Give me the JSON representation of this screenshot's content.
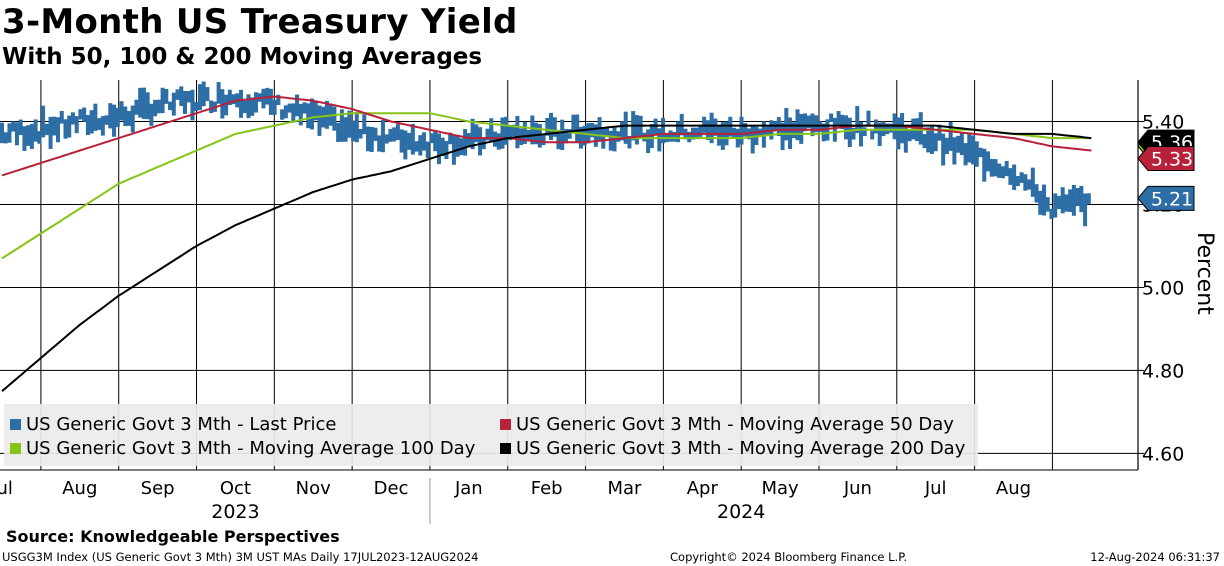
{
  "title": "3-Month US Treasury Yield",
  "subtitle": "With 50, 100 & 200 Moving Averages",
  "source": "Source: Knowledgeable Perspectives",
  "footer": {
    "left": "USGG3M Index (US Generic Govt 3 Mth) 3M UST MAs  Daily 17JUL2023-12AUG2024",
    "mid": "Copyright© 2024 Bloomberg Finance L.P.",
    "right": "12-Aug-2024 06:31:37"
  },
  "colors": {
    "last": "#2e6ea6",
    "ma50": "#b8213a",
    "ma100": "#86c517",
    "ma200": "#000000"
  },
  "chart_data": {
    "type": "line",
    "title": "3-Month US Treasury Yield",
    "subtitle": "With 50, 100 & 200 Moving Averages",
    "ylabel": "Percent",
    "xlabel": "",
    "ylim": [
      4.56,
      5.5
    ],
    "yticks": [
      "4.60",
      "4.80",
      "5.00",
      "5.20",
      "5.40"
    ],
    "month_labels": [
      "Jul",
      "Aug",
      "Sep",
      "Oct",
      "Nov",
      "Dec",
      "Jan",
      "Feb",
      "Mar",
      "Apr",
      "May",
      "Jun",
      "Jul",
      "Aug"
    ],
    "year_labels": [
      "2023",
      "2024"
    ],
    "last_price_badge": "5.21",
    "ma50_badge": "5.33",
    "ma100_badge": "5.36",
    "ma200_badge": "5.36",
    "series": [
      {
        "name": "US Generic Govt 3 Mth - Last Price",
        "style": "bars",
        "x": [
          0,
          0.5,
          1,
          1.5,
          2,
          2.5,
          3,
          3.5,
          4,
          4.5,
          5,
          5.5,
          6,
          6.5,
          7,
          7.5,
          8,
          8.5,
          9,
          9.5,
          10,
          10.5,
          11,
          11.5,
          12,
          12.5,
          13,
          13.5,
          14
        ],
        "values": [
          5.37,
          5.38,
          5.4,
          5.41,
          5.44,
          5.45,
          5.46,
          5.44,
          5.41,
          5.38,
          5.36,
          5.35,
          5.35,
          5.37,
          5.37,
          5.38,
          5.37,
          5.37,
          5.38,
          5.37,
          5.38,
          5.39,
          5.39,
          5.38,
          5.36,
          5.32,
          5.28,
          5.19,
          5.21
        ]
      },
      {
        "name": "US Generic Govt 3 Mth - Moving Average 50 Day",
        "style": "line",
        "x": [
          0,
          0.5,
          1,
          1.5,
          2,
          2.5,
          3,
          3.5,
          4,
          4.5,
          5,
          5.5,
          6,
          6.5,
          7,
          7.5,
          8,
          8.5,
          9,
          9.5,
          10,
          10.5,
          11,
          11.5,
          12,
          12.5,
          13,
          13.5,
          14
        ],
        "values": [
          5.27,
          5.3,
          5.33,
          5.36,
          5.39,
          5.42,
          5.45,
          5.46,
          5.45,
          5.43,
          5.4,
          5.38,
          5.36,
          5.36,
          5.35,
          5.35,
          5.36,
          5.37,
          5.37,
          5.37,
          5.38,
          5.38,
          5.39,
          5.39,
          5.38,
          5.37,
          5.36,
          5.34,
          5.33
        ]
      },
      {
        "name": "US Generic Govt 3 Mth - Moving Average 100 Day",
        "style": "line",
        "x": [
          0,
          0.5,
          1,
          1.5,
          2,
          2.5,
          3,
          3.5,
          4,
          4.5,
          5,
          5.5,
          6,
          6.5,
          7,
          7.5,
          8,
          8.5,
          9,
          9.5,
          10,
          10.5,
          11,
          11.5,
          12,
          12.5,
          13,
          13.5,
          14
        ],
        "values": [
          5.07,
          5.13,
          5.19,
          5.25,
          5.29,
          5.33,
          5.37,
          5.39,
          5.41,
          5.42,
          5.42,
          5.42,
          5.4,
          5.39,
          5.38,
          5.37,
          5.36,
          5.36,
          5.36,
          5.36,
          5.37,
          5.37,
          5.38,
          5.38,
          5.38,
          5.38,
          5.37,
          5.36,
          5.36
        ]
      },
      {
        "name": "US Generic Govt 3 Mth - Moving Average 200 Day",
        "style": "line",
        "x": [
          0,
          0.5,
          1,
          1.5,
          2,
          2.5,
          3,
          3.5,
          4,
          4.5,
          5,
          5.5,
          6,
          6.5,
          7,
          7.5,
          8,
          8.5,
          9,
          9.5,
          10,
          10.5,
          11,
          11.5,
          12,
          12.5,
          13,
          13.5,
          14
        ],
        "values": [
          4.75,
          4.83,
          4.91,
          4.98,
          5.04,
          5.1,
          5.15,
          5.19,
          5.23,
          5.26,
          5.28,
          5.31,
          5.34,
          5.36,
          5.37,
          5.38,
          5.39,
          5.39,
          5.39,
          5.39,
          5.39,
          5.39,
          5.39,
          5.39,
          5.39,
          5.38,
          5.37,
          5.37,
          5.36
        ]
      }
    ]
  }
}
